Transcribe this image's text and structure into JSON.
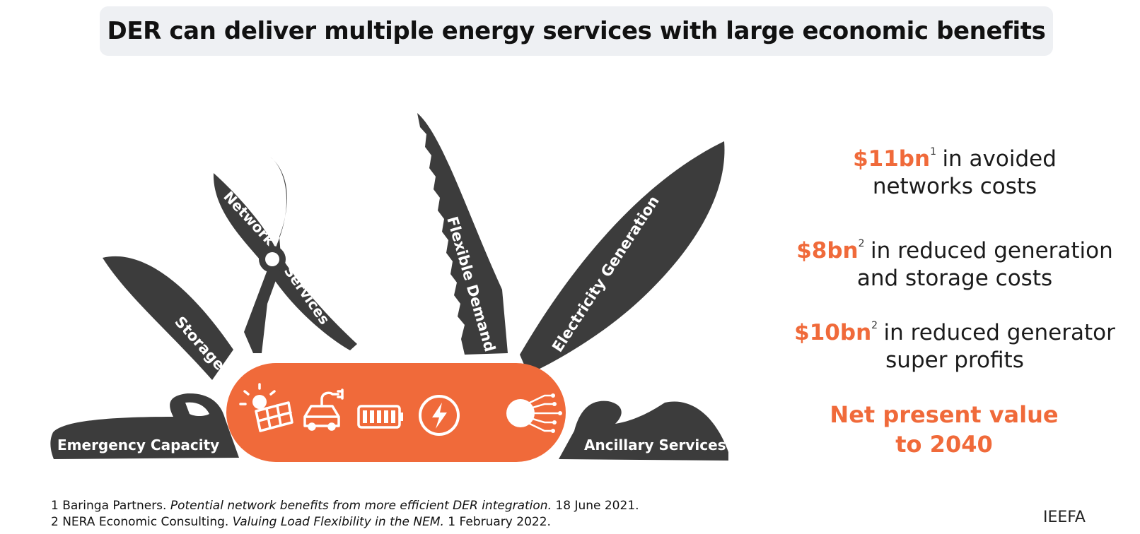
{
  "title": "DER can deliver multiple energy services with large economic benefits",
  "tools": {
    "emergency": "Emergency Capacity",
    "storage": "Storage",
    "network_line1": "Network",
    "network_line2": "Services",
    "flexible": "Flexible Demand",
    "electricity": "Electricity Generation",
    "ancillary": "Ancillary Services"
  },
  "icons": [
    "solar-panel-icon",
    "electric-car-icon",
    "battery-icon",
    "lightning-bolt-icon",
    "digital-circuit-icon"
  ],
  "colors": {
    "accent": "#f06a3a",
    "blade": "#3c3c3c",
    "title_bg": "#eef0f3"
  },
  "benefits": [
    {
      "amount": "$11bn",
      "ref": "1",
      "text_a": "in avoided",
      "text_b": "networks costs"
    },
    {
      "amount": "$8bn",
      "ref": "2",
      "text_a": "in reduced generation",
      "text_b": "and storage costs"
    },
    {
      "amount": "$10bn",
      "ref": "2",
      "text_a": "in reduced generator",
      "text_b": "super profits"
    }
  ],
  "npv": {
    "line1": "Net present value",
    "line2": "to 2040"
  },
  "footnotes": [
    {
      "pre": "1 Baringa Partners. ",
      "title": "Potential network benefits from more efficient DER integration.",
      "post": " 18 June 2021."
    },
    {
      "pre": "2 NERA Economic Consulting. ",
      "title": "Valuing Load Flexibility in the NEM.",
      "post": " 1 February 2022."
    }
  ],
  "source": "IEEFA"
}
